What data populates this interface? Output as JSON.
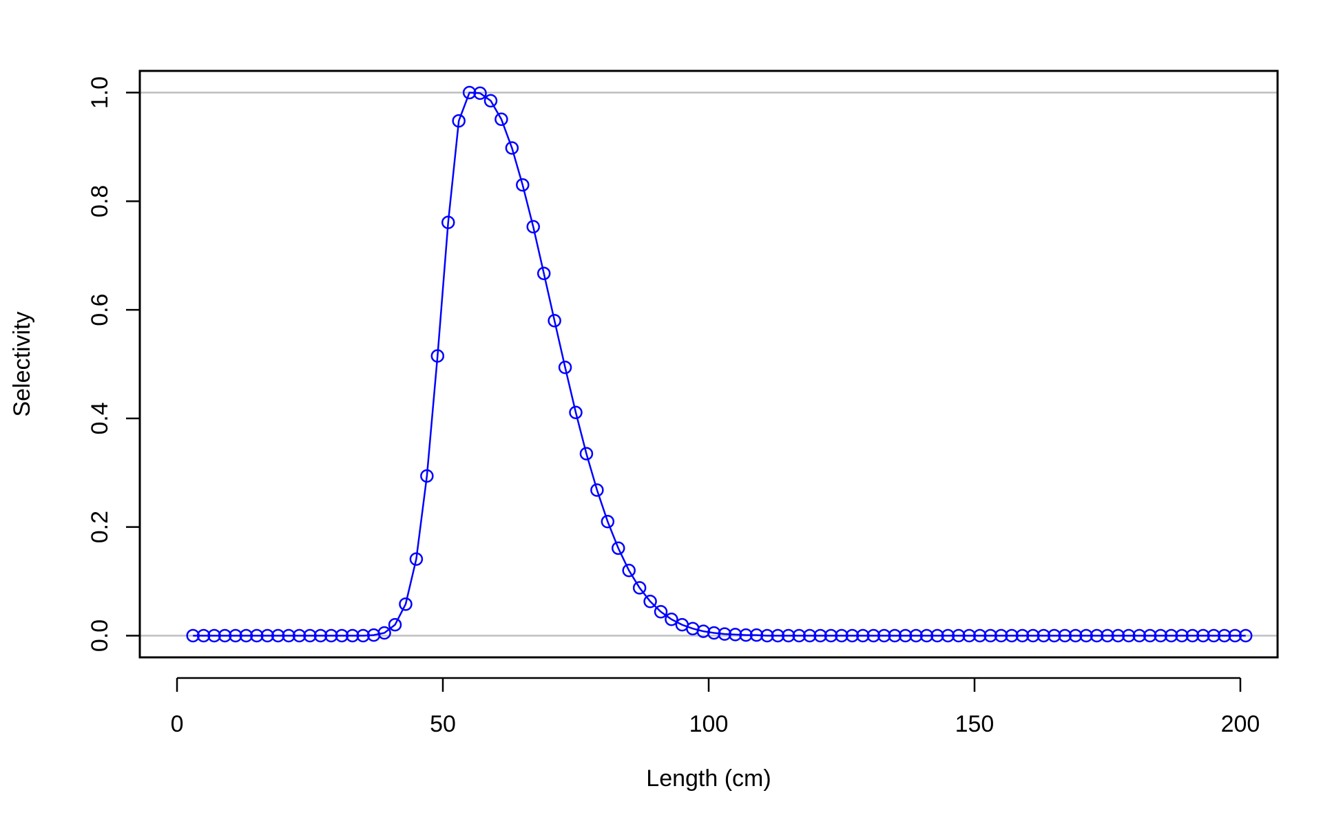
{
  "chart_data": {
    "type": "line",
    "title": "",
    "xlabel": "Length (cm)",
    "ylabel": "Selectivity",
    "xlim": [
      -7,
      207
    ],
    "ylim": [
      -0.04,
      1.04
    ],
    "x_ticks": [
      0,
      50,
      100,
      150,
      200
    ],
    "x_tick_labels": [
      "0",
      "50",
      "100",
      "150",
      "200"
    ],
    "y_ticks": [
      0,
      0.2,
      0.4,
      0.6,
      0.8,
      1.0
    ],
    "y_tick_labels": [
      "0.0",
      "0.2",
      "0.4",
      "0.6",
      "0.8",
      "1.0"
    ],
    "reference_lines": [
      0,
      1
    ],
    "reference_line_color": "#bebebe",
    "line_color": "#0000ff",
    "marker": "open-circle",
    "grid": false,
    "series": [
      {
        "x": [
          3,
          5,
          7,
          9,
          11,
          13,
          15,
          17,
          19,
          21,
          23,
          25,
          27,
          29,
          31,
          33,
          35,
          37,
          39,
          41,
          43,
          45,
          47,
          49,
          51,
          53,
          55,
          57,
          59,
          61,
          63,
          65,
          67,
          69,
          71,
          73,
          75,
          77,
          79,
          81,
          83,
          85,
          87,
          89,
          91,
          93,
          95,
          97,
          99,
          101,
          103,
          105,
          107,
          109,
          111,
          113,
          115,
          117,
          119,
          121,
          123,
          125,
          127,
          129,
          131,
          133,
          135,
          137,
          139,
          141,
          143,
          145,
          147,
          149,
          151,
          153,
          155,
          157,
          159,
          161,
          163,
          165,
          167,
          169,
          171,
          173,
          175,
          177,
          179,
          181,
          183,
          185,
          187,
          189,
          191,
          193,
          195,
          197,
          199,
          201
        ],
        "values": [
          0,
          0,
          0,
          0,
          0,
          0,
          0,
          0,
          0,
          0,
          0,
          0,
          0,
          0,
          0,
          0,
          0,
          0.001,
          0.005,
          0.02,
          0.058,
          0.141,
          0.294,
          0.515,
          0.761,
          0.948,
          1.0,
          0.999,
          0.985,
          0.951,
          0.898,
          0.83,
          0.753,
          0.667,
          0.58,
          0.494,
          0.411,
          0.335,
          0.268,
          0.21,
          0.161,
          0.12,
          0.088,
          0.063,
          0.044,
          0.03,
          0.02,
          0.013,
          0.008,
          0.005,
          0.003,
          0.002,
          0.001,
          0.001,
          0,
          0,
          0,
          0,
          0,
          0,
          0,
          0,
          0,
          0,
          0,
          0,
          0,
          0,
          0,
          0,
          0,
          0,
          0,
          0,
          0,
          0,
          0,
          0,
          0,
          0,
          0,
          0,
          0,
          0,
          0,
          0,
          0,
          0,
          0,
          0,
          0,
          0,
          0,
          0,
          0,
          0,
          0,
          0,
          0,
          0
        ]
      }
    ]
  }
}
